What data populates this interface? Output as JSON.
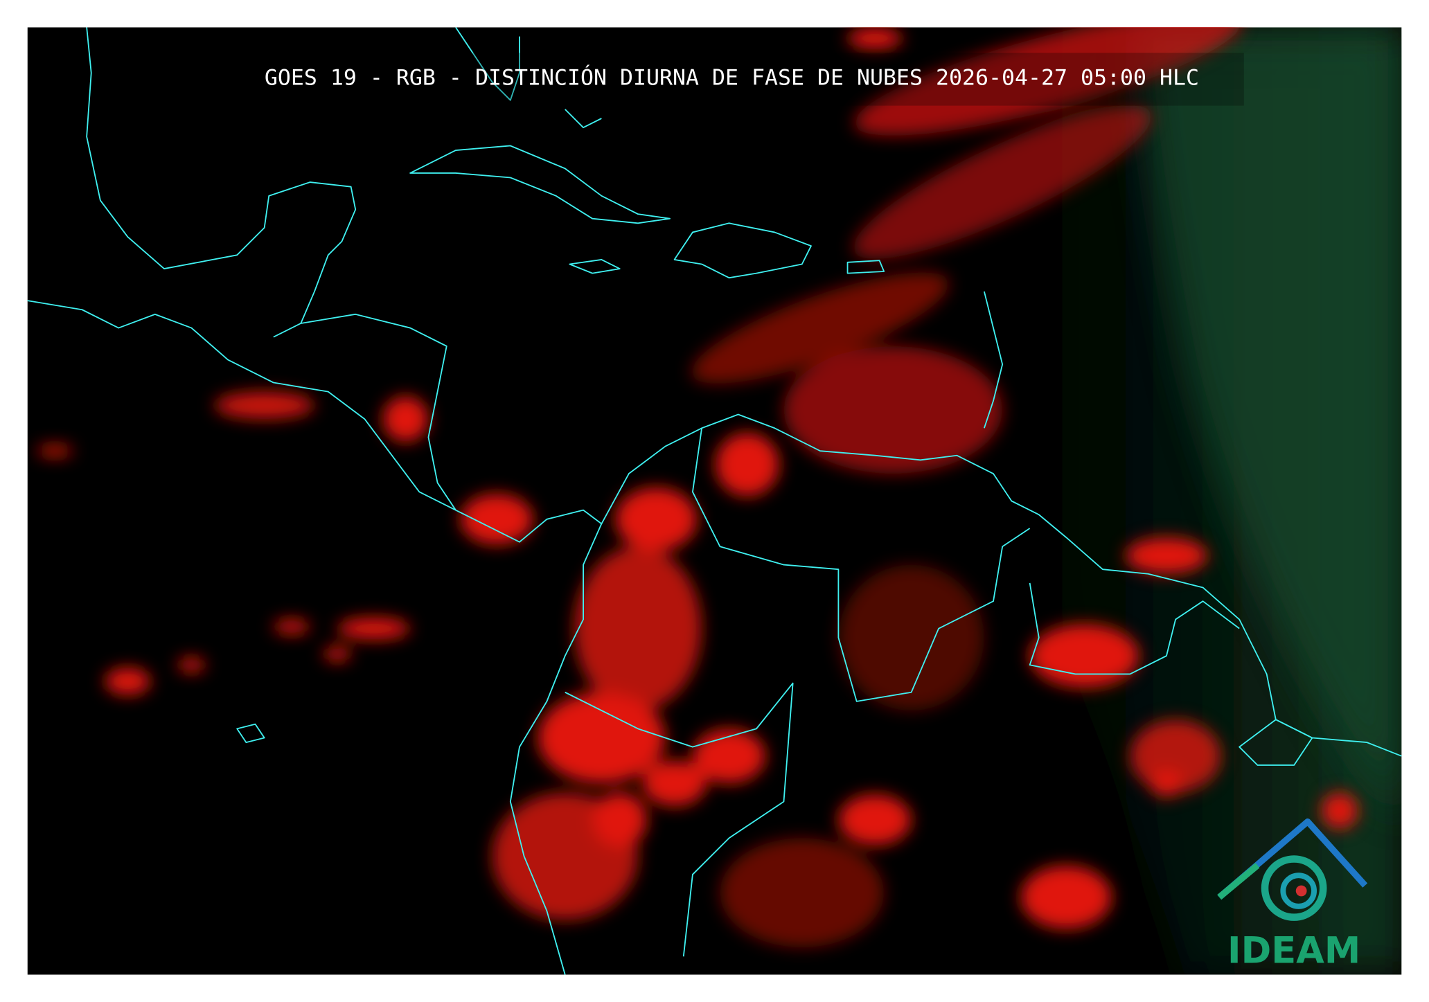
{
  "header": {
    "title": "GOES 19 - RGB - DISTINCIÓN DIURNA DE FASE DE NUBES 2026-04-27 05:00 HLC"
  },
  "logo": {
    "text": "IDEAM"
  }
}
